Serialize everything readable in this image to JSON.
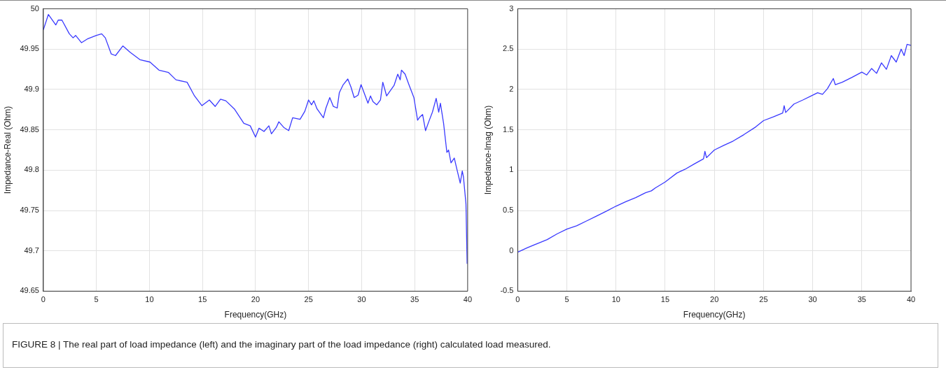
{
  "chart_data": [
    {
      "type": "line",
      "xlabel": "Frequency(GHz)",
      "ylabel": "Impedance-Real (Ohm)",
      "xlim": [
        0,
        40
      ],
      "ylim": [
        49.65,
        50
      ],
      "xticks": [
        0,
        5,
        10,
        15,
        20,
        25,
        30,
        35,
        40
      ],
      "yticks": [
        49.65,
        49.7,
        49.75,
        49.8,
        49.85,
        49.9,
        49.95,
        50
      ],
      "grid": true,
      "annotations": [
        "FIGURE 8 | The real part of load impedance (left) and the imaginary part of the load impedance (right) calculated load measured."
      ],
      "series": [
        {
          "color": "#3a3aff",
          "x": [
            0,
            0.47,
            1.17,
            1.4,
            1.75,
            2.45,
            2.8,
            3.04,
            3.6,
            4.2,
            5.0,
            5.5,
            5.84,
            6.4,
            6.8,
            7.5,
            8.2,
            9.1,
            10.05,
            10.9,
            11.8,
            12.5,
            13.55,
            14.25,
            14.95,
            15.65,
            16.2,
            16.7,
            17.2,
            18.0,
            18.9,
            19.5,
            20.0,
            20.33,
            20.8,
            21.26,
            21.5,
            21.96,
            22.2,
            22.66,
            23.13,
            23.5,
            24.2,
            24.65,
            25.0,
            25.28,
            25.5,
            25.8,
            26.4,
            26.64,
            27.0,
            27.34,
            27.7,
            27.9,
            28.27,
            28.7,
            29.0,
            29.3,
            29.67,
            29.95,
            30.6,
            30.84,
            31.07,
            31.43,
            31.78,
            32.0,
            32.36,
            33.06,
            33.41,
            33.64,
            33.76,
            34.1,
            34.46,
            34.93,
            35.28,
            35.5,
            35.75,
            36.03,
            36.33,
            36.68,
            37.03,
            37.27,
            37.43,
            37.73,
            38.04,
            38.2,
            38.43,
            38.74,
            38.97,
            39.3,
            39.49,
            39.6,
            39.84,
            39.95
          ],
          "values": [
            49.974,
            49.993,
            49.98,
            49.986,
            49.986,
            49.969,
            49.964,
            49.967,
            49.958,
            49.963,
            49.967,
            49.969,
            49.964,
            49.944,
            49.942,
            49.954,
            49.946,
            49.937,
            49.934,
            49.924,
            49.921,
            49.912,
            49.909,
            49.892,
            49.88,
            49.887,
            49.879,
            49.888,
            49.886,
            49.876,
            49.858,
            49.855,
            49.841,
            49.852,
            49.848,
            49.855,
            49.845,
            49.853,
            49.86,
            49.853,
            49.849,
            49.865,
            49.863,
            49.873,
            49.887,
            49.881,
            49.886,
            49.876,
            49.865,
            49.877,
            49.89,
            49.879,
            49.877,
            49.896,
            49.906,
            49.913,
            49.903,
            49.89,
            49.893,
            49.906,
            49.883,
            49.892,
            49.885,
            49.881,
            49.887,
            49.909,
            49.892,
            49.905,
            49.919,
            49.912,
            49.924,
            49.919,
            49.906,
            49.89,
            49.862,
            49.866,
            49.869,
            49.849,
            49.86,
            49.872,
            49.889,
            49.872,
            49.883,
            49.858,
            49.822,
            49.825,
            49.809,
            49.815,
            49.802,
            49.784,
            49.799,
            49.792,
            49.758,
            49.684
          ]
        }
      ]
    },
    {
      "type": "line",
      "xlabel": "Frequency(GHz)",
      "ylabel": "Impedance-Imag (Ohm)",
      "xlim": [
        0,
        40
      ],
      "ylim": [
        -0.5,
        3
      ],
      "xticks": [
        0,
        5,
        10,
        15,
        20,
        25,
        30,
        35,
        40
      ],
      "yticks": [
        -0.5,
        0,
        0.5,
        1,
        1.5,
        2,
        2.5,
        3
      ],
      "grid": true,
      "series": [
        {
          "color": "#3a3aff",
          "x": [
            0,
            1,
            2,
            3,
            4,
            5,
            6,
            7,
            8,
            9,
            10,
            11,
            12,
            13,
            13.6,
            14,
            15,
            16.2,
            17,
            18,
            18.9,
            19.04,
            19.2,
            20,
            21,
            21.9,
            23,
            24.2,
            25,
            26,
            26.95,
            27.1,
            27.25,
            28.1,
            29,
            30,
            30.5,
            31,
            31.5,
            32.1,
            32.3,
            33,
            34,
            35,
            35.5,
            36,
            36.5,
            37,
            37.5,
            38,
            38.5,
            39,
            39.3,
            39.6,
            40
          ],
          "values": [
            -0.016,
            0.04,
            0.09,
            0.14,
            0.21,
            0.27,
            0.31,
            0.37,
            0.43,
            0.49,
            0.554,
            0.61,
            0.66,
            0.72,
            0.744,
            0.78,
            0.854,
            0.965,
            1.01,
            1.08,
            1.14,
            1.234,
            1.155,
            1.25,
            1.31,
            1.36,
            1.44,
            1.535,
            1.614,
            1.66,
            1.709,
            1.8,
            1.715,
            1.82,
            1.87,
            1.93,
            1.96,
            1.94,
            2.01,
            2.136,
            2.06,
            2.09,
            2.15,
            2.215,
            2.18,
            2.26,
            2.2,
            2.33,
            2.25,
            2.42,
            2.34,
            2.5,
            2.42,
            2.56,
            2.547
          ]
        }
      ]
    }
  ]
}
